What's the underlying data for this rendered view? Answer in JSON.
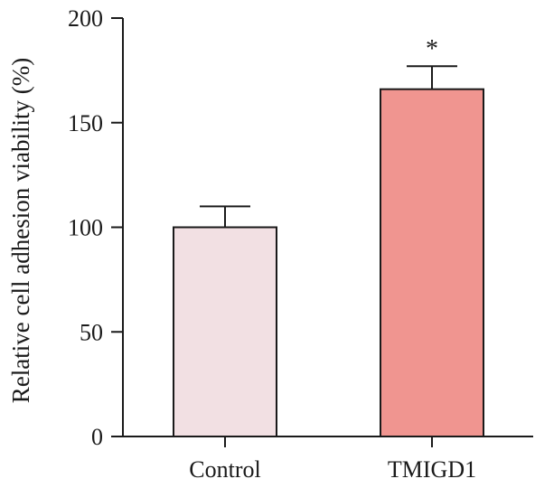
{
  "chart_data": {
    "type": "bar",
    "title": "",
    "xlabel": "",
    "ylabel": "Relative cell adhesion viability (%)",
    "categories": [
      "Control",
      "TMIGD1"
    ],
    "values": [
      100,
      166
    ],
    "errors": [
      10,
      11
    ],
    "annotations": [
      "",
      "*"
    ],
    "ylim": [
      0,
      200
    ],
    "yticks": [
      0,
      50,
      100,
      150,
      200
    ],
    "ytick_labels": [
      "0",
      "50",
      "100",
      "150",
      "200"
    ],
    "colors": [
      "#f2e0e3",
      "#f09590"
    ],
    "grid": false,
    "legend": "none"
  }
}
